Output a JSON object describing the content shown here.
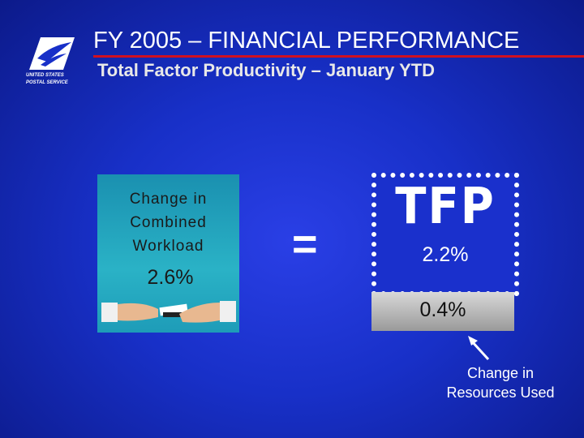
{
  "header": {
    "title": "FY 2005 – FINANCIAL PERFORMANCE",
    "subtitle": "Total Factor Productivity – January YTD",
    "logo": {
      "line1": "UNITED STATES",
      "line2": "POSTAL SERVICE"
    }
  },
  "workload": {
    "label": "Change in Combined Workload",
    "value": "2.6%"
  },
  "equals": "=",
  "tfp": {
    "label": "TFP",
    "value": "2.2%"
  },
  "resources": {
    "value": "0.4%",
    "note": "Change in Resources Used"
  }
}
